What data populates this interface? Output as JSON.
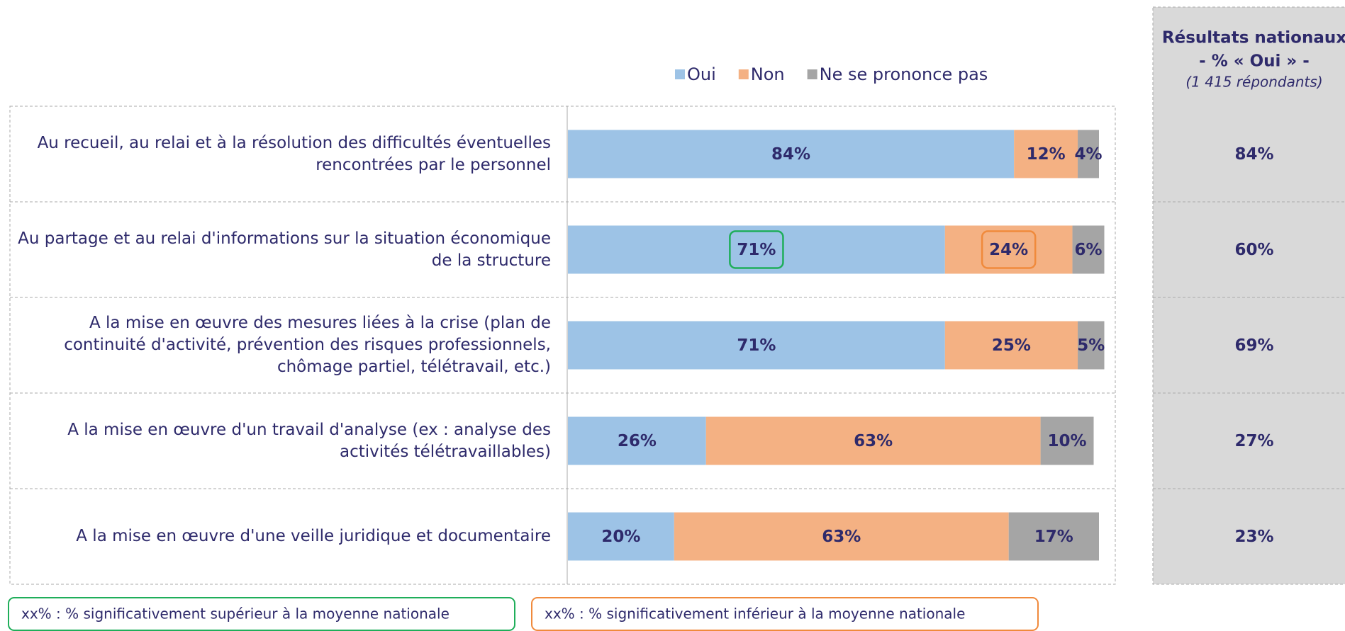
{
  "chart_data": {
    "type": "bar",
    "orientation": "horizontal",
    "stacked": true,
    "categories": [
      "Au recueil, au relai et à la résolution des difficultés éventuelles rencontrées par le personnel",
      "Au partage et au relai d'informations sur la situation économique de la structure",
      "A la mise en œuvre des mesures liées à la crise (plan de continuité d'activité, prévention des risques professionnels, chômage partiel, télétravail, etc.)",
      "A la mise en œuvre d'un travail d'analyse (ex : analyse des activités télétravaillables)",
      "A la mise en œuvre d'une veille juridique et documentaire"
    ],
    "series": [
      {
        "name": "Oui",
        "color": "#9dc3e6",
        "values": [
          84,
          71,
          71,
          26,
          20
        ],
        "value_labels": [
          "84%",
          "71%",
          "71%",
          "26%",
          "20%"
        ],
        "outlined": [
          null,
          0,
          null,
          null,
          null
        ]
      },
      {
        "name": "Non",
        "color": "#f4b183",
        "values": [
          12,
          24,
          25,
          63,
          63
        ],
        "value_labels": [
          "12%",
          "24%",
          "25%",
          "63%",
          "63%"
        ],
        "outlined": [
          null,
          1,
          null,
          null,
          null
        ]
      },
      {
        "name": "Ne se prononce pas",
        "color": "#a5a5a5",
        "values": [
          4,
          6,
          5,
          10,
          17
        ],
        "value_labels": [
          "4%",
          "6%",
          "5%",
          "10%",
          "17%"
        ],
        "outlined": [
          null,
          null,
          null,
          null,
          null
        ]
      }
    ],
    "xlim": [
      0,
      100
    ]
  },
  "national": {
    "title_lines": [
      "Résultats nationaux",
      "- % « Oui » -"
    ],
    "subtitle": "(1 415 répondants)",
    "values": [
      84,
      60,
      69,
      27,
      23
    ],
    "value_labels": [
      "84%",
      "60%",
      "69%",
      "27%",
      "23%"
    ]
  },
  "notes": [
    {
      "text": "xx% : % significativement supérieur à la moyenne nationale",
      "color": "#1fae5a"
    },
    {
      "text": "xx% : % significativement inférieur à la moyenne nationale",
      "color": "#f08a3c"
    }
  ]
}
